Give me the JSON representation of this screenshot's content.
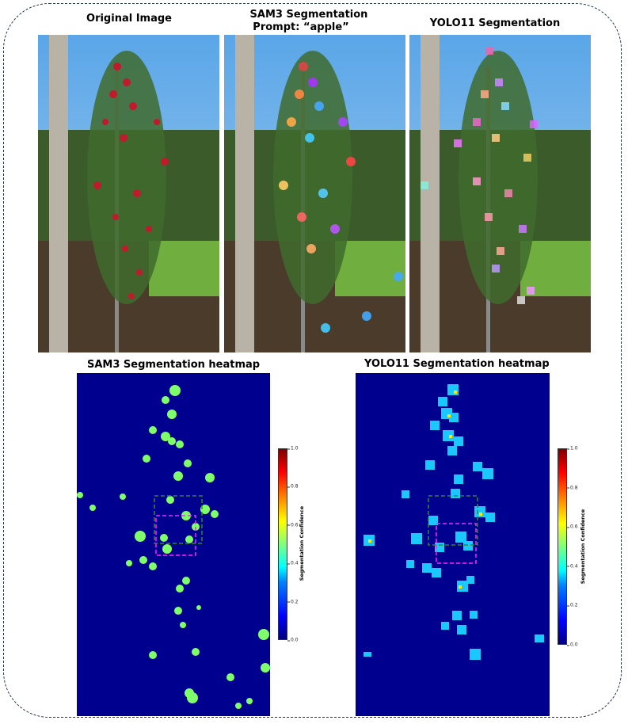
{
  "panels": {
    "original_title": "Original Image",
    "sam3_title_line1": "SAM3 Segmentation",
    "sam3_title_line2": "Prompt: “apple”",
    "yolo_title": "YOLO11 Segmentation",
    "sam3_heatmap_title": "SAM3 Segmentation heatmap",
    "yolo_heatmap_title": "YOLO11 Segmentation heatmap"
  },
  "colorbar": {
    "label": "Segmentation Confidence",
    "ticks": [
      "0.0",
      "0.2",
      "0.4",
      "0.6",
      "0.8",
      "1.0"
    ],
    "tick_values": [
      0.0,
      0.2,
      0.4,
      0.6,
      0.8,
      1.0
    ],
    "range": [
      0.0,
      1.0
    ]
  },
  "colors": {
    "heatmap_background": "#00008f",
    "sam3_blob": "#7fff6a",
    "yolo_blob": "#1ac8ff",
    "yolo_hot": "#ffe800",
    "roi_outer": "#2e8b2e",
    "roi_inner": "#ff22ff",
    "frame": "#1f3347"
  }
}
